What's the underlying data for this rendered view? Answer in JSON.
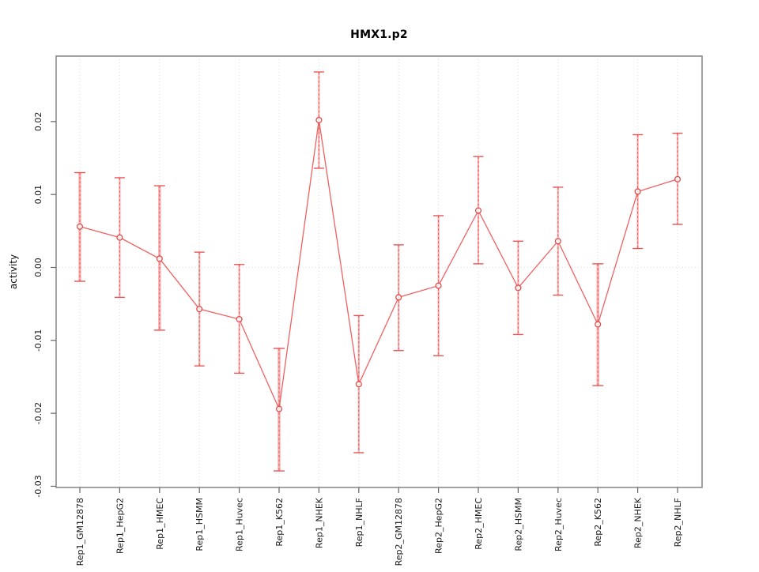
{
  "chart_data": {
    "type": "line",
    "title": "HMX1.p2",
    "ylabel": "activity",
    "xlabel": "",
    "categories": [
      "Rep1_GM12878",
      "Rep1_HepG2",
      "Rep1_HMEC",
      "Rep1_HSMM",
      "Rep1_Huvec",
      "Rep1_K562",
      "Rep1_NHEK",
      "Rep1_NHLF",
      "Rep2_GM12878",
      "Rep2_HepG2",
      "Rep2_HMEC",
      "Rep2_HSMM",
      "Rep2_Huvec",
      "Rep2_K562",
      "Rep2_NHEK",
      "Rep2_NHLF"
    ],
    "series": [
      {
        "name": "activity",
        "marker": "open-circle",
        "values": [
          0.0056,
          0.0041,
          0.0012,
          -0.0057,
          -0.0071,
          -0.0194,
          0.0202,
          -0.016,
          -0.0041,
          -0.0025,
          0.0078,
          -0.0028,
          0.0036,
          -0.0078,
          0.0104,
          0.0121
        ],
        "error_upper": [
          0.013,
          0.0123,
          0.0112,
          0.0021,
          0.0004,
          -0.0111,
          0.0268,
          -0.0066,
          0.0031,
          0.0071,
          0.0152,
          0.0036,
          0.011,
          0.0005,
          0.0182,
          0.0184
        ],
        "error_lower": [
          -0.0019,
          -0.0041,
          -0.0086,
          -0.0135,
          -0.0145,
          -0.0279,
          0.0136,
          -0.0254,
          -0.0114,
          -0.0121,
          0.0005,
          -0.0092,
          -0.0038,
          -0.0162,
          0.0026,
          0.0059
        ]
      }
    ],
    "thick_error_bars": [
      0,
      2,
      5,
      13
    ],
    "yticks": [
      {
        "label": "0.02",
        "value": 0.02
      },
      {
        "label": "0.01",
        "value": 0.01
      },
      {
        "label": "0.00",
        "value": 0.0
      },
      {
        "label": "-0.01",
        "value": -0.01
      },
      {
        "label": "-0.02",
        "value": -0.02
      },
      {
        "label": "-0.03",
        "value": -0.03
      }
    ],
    "ylim": [
      -0.0302,
      0.0289
    ],
    "legend": "none",
    "grid": "vertical dotted gridline at each category; horizontal dotted line at y=0 only",
    "colors": {
      "series_line": "#ef5858",
      "error_cap": "#e84c4c",
      "error_core_dashed": "#e85050",
      "error_halo_pink": "#f8b0b0",
      "marker_stroke": "#e14a4a",
      "gridline": "#dcdcdc",
      "zero_line": "#e4dcdc",
      "frame": "#8c8c8c",
      "tick": "#666666",
      "tick_label": "#1a1a1a",
      "title": "#000000"
    }
  }
}
